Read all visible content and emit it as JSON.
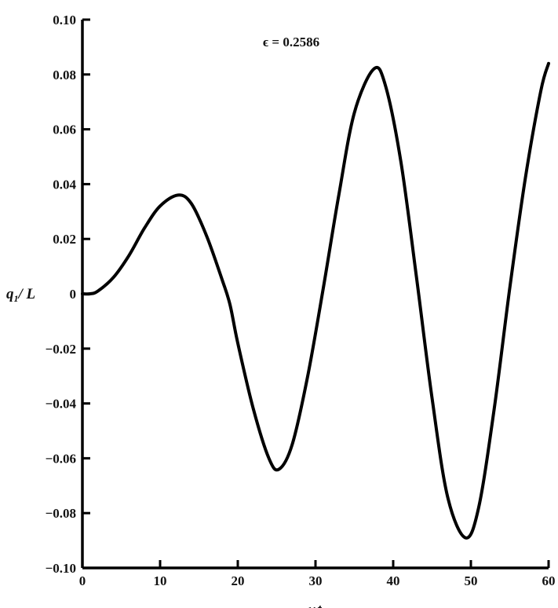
{
  "chart_data": {
    "type": "line",
    "title": "",
    "annotation": "ϵ = 0.2586",
    "xlabel": "ωt",
    "ylabel_main": "q",
    "ylabel_sub": "1",
    "ylabel_rest": "/ L",
    "xlim": [
      0,
      60
    ],
    "ylim": [
      -0.1,
      0.1
    ],
    "xticks": [
      0,
      10,
      20,
      30,
      40,
      50,
      60
    ],
    "xtick_labels": [
      "0",
      "10",
      "20",
      "30",
      "40",
      "50",
      "60"
    ],
    "yticks": [
      0.1,
      0.08,
      0.06,
      0.04,
      0.02,
      0,
      -0.02,
      -0.04,
      -0.06,
      -0.08,
      -0.1
    ],
    "ytick_labels": [
      "0.10",
      "0.08",
      "0.06",
      "0.04",
      "0.02",
      "0",
      "−0.02",
      "−0.04",
      "−0.06",
      "−0.08",
      "−0.10"
    ],
    "grid": false,
    "line_color": "#000000",
    "series": [
      {
        "x": [
          0,
          1,
          2,
          4,
          6,
          8,
          10,
          12.3,
          14,
          16,
          18,
          19,
          20,
          22,
          24,
          25.3,
          27,
          29,
          31,
          33,
          35,
          37.5,
          39,
          41,
          43,
          45,
          47,
          49.3,
          51,
          53,
          55,
          57,
          59,
          60
        ],
        "y": [
          0,
          0,
          0.001,
          0.006,
          0.014,
          0.024,
          0.032,
          0.036,
          0.033,
          0.021,
          0.005,
          -0.004,
          -0.018,
          -0.042,
          -0.06,
          -0.064,
          -0.055,
          -0.03,
          0.002,
          0.036,
          0.066,
          0.082,
          0.076,
          0.048,
          0.006,
          -0.038,
          -0.074,
          -0.089,
          -0.078,
          -0.042,
          0.002,
          0.042,
          0.074,
          0.084
        ]
      }
    ]
  }
}
